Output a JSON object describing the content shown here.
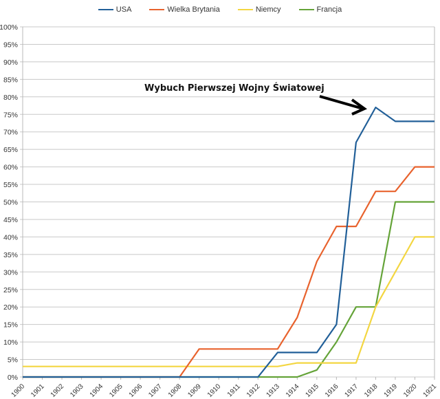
{
  "chart_data": {
    "type": "line",
    "title": "",
    "xlabel": "",
    "ylabel": "",
    "ylim": [
      0,
      100
    ],
    "y_ticks": [
      "0%",
      "5%",
      "10%",
      "15%",
      "20%",
      "25%",
      "30%",
      "35%",
      "40%",
      "45%",
      "50%",
      "55%",
      "60%",
      "65%",
      "70%",
      "75%",
      "80%",
      "85%",
      "90%",
      "95%",
      "100%"
    ],
    "grid": true,
    "legend_position": "top",
    "categories": [
      "1900",
      "1901",
      "1902",
      "1903",
      "1904",
      "1905",
      "1906",
      "1907",
      "1908",
      "1909",
      "1910",
      "1911",
      "1912",
      "1913",
      "1914",
      "1915",
      "1916",
      "1917",
      "1918",
      "1919",
      "1920",
      "1921"
    ],
    "series": [
      {
        "name": "USA",
        "color": "#215f98",
        "values": [
          0,
          0,
          0,
          0,
          0,
          0,
          0,
          0,
          0,
          0,
          0,
          0,
          0,
          7,
          7,
          7,
          15,
          67,
          77,
          73,
          73,
          73
        ]
      },
      {
        "name": "Wielka Brytania",
        "color": "#e8622d",
        "values": [
          0,
          0,
          0,
          0,
          0,
          0,
          0,
          0,
          0,
          8,
          8,
          8,
          8,
          8,
          17,
          33,
          43,
          43,
          53,
          53,
          60,
          60
        ]
      },
      {
        "name": "Niemcy",
        "color": "#f3d641",
        "values": [
          3,
          3,
          3,
          3,
          3,
          3,
          3,
          3,
          3,
          3,
          3,
          3,
          3,
          3,
          4,
          4,
          4,
          4,
          20,
          30,
          40,
          40
        ]
      },
      {
        "name": "Francja",
        "color": "#64a338",
        "values": [
          0,
          0,
          0,
          0,
          0,
          0,
          0,
          0,
          0,
          0,
          0,
          0,
          0,
          0,
          0,
          2,
          10,
          20,
          20,
          50,
          50,
          50
        ]
      }
    ],
    "annotations": [
      {
        "text": "Wybuch Pierwszej Wojny Światowej",
        "points_to": {
          "x": "1918",
          "y": 77
        }
      }
    ]
  }
}
